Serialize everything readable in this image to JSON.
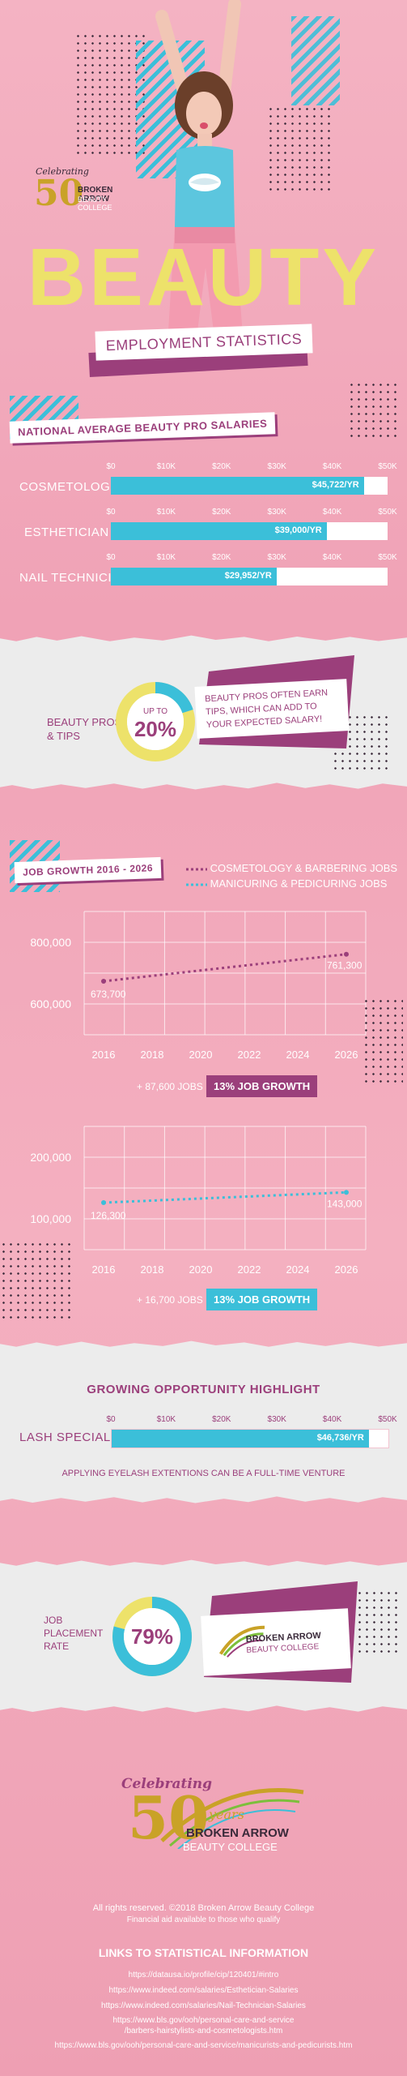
{
  "brand": {
    "celebrating": "Celebrating",
    "number": "50",
    "years": "years",
    "name_line1": "BROKEN ARROW",
    "name_line2": "BEAUTY COLLEGE"
  },
  "hero": {
    "title": "BEAUTY",
    "subtitle": "EMPLOYMENT STATISTICS"
  },
  "salaries": {
    "section_label": "NATIONAL AVERAGE BEAUTY PRO SALARIES",
    "ticks": [
      "$0",
      "$10K",
      "$20K",
      "$30K",
      "$40K",
      "$50K"
    ],
    "max": 50000,
    "rows": [
      {
        "label": "COSMETOLOGIST",
        "value": 45722,
        "value_label": "$45,722/YR"
      },
      {
        "label": "ESTHETICIAN",
        "value": 39000,
        "value_label": "$39,000/YR"
      },
      {
        "label": "NAIL TECHNICIAN",
        "value": 29952,
        "value_label": "$29,952/YR"
      }
    ]
  },
  "tips": {
    "label_line1": "BEAUTY PROS",
    "label_line2": "& TIPS",
    "up_to": "UP TO",
    "percent": "20%",
    "percent_value": 20,
    "note_line1": "BEAUTY PROS OFTEN EARN",
    "note_line2": "TIPS, WHICH CAN ADD TO",
    "note_line3": "YOUR EXPECTED SALARY!"
  },
  "growth": {
    "section_label": "JOB GROWTH 2016 - 2026",
    "legend": [
      {
        "name": "COSMETOLOGY & BARBERING JOBS",
        "color": "#9b3f7b"
      },
      {
        "name": "MANICURING & PEDICURING JOBS",
        "color": "#3bbfd9"
      }
    ],
    "x_ticks": [
      "2016",
      "2018",
      "2020",
      "2022",
      "2024",
      "2026"
    ],
    "chart1": {
      "y_ticks": [
        "800,000",
        "600,000"
      ],
      "ylim": [
        500000,
        900000
      ],
      "start": 673700,
      "end": 761300,
      "start_label": "673,700",
      "end_label": "761,300",
      "jobs_text": "+ 87,600 JOBS",
      "growth_text": "13% JOB GROWTH"
    },
    "chart2": {
      "y_ticks": [
        "200,000",
        "100,000"
      ],
      "ylim": [
        50000,
        250000
      ],
      "start": 126300,
      "end": 143000,
      "start_label": "126,300",
      "end_label": "143,000",
      "jobs_text": "+ 16,700 JOBS",
      "growth_text": "13% JOB GROWTH"
    }
  },
  "opportunity": {
    "heading": "GROWING OPPORTUNITY HIGHLIGHT",
    "ticks": [
      "$0",
      "$10K",
      "$20K",
      "$30K",
      "$40K",
      "$50K"
    ],
    "label": "LASH SPECIALIST",
    "value": 46736,
    "value_label": "$46,736/YR",
    "note": "APPLYING EYELASH EXTENTIONS CAN BE A FULL-TIME VENTURE"
  },
  "placement": {
    "label_line1": "JOB",
    "label_line2": "PLACEMENT",
    "label_line3": "RATE",
    "percent": "79%",
    "percent_value": 79
  },
  "footer": {
    "rights": "All rights reserved. ©2018 Broken Arrow Beauty College",
    "aid": "Financial aid available to those who qualify",
    "links_heading": "LINKS TO STATISTICAL INFORMATION",
    "links": [
      "https://datausa.io/profile/cip/120401/#intro",
      "https://www.indeed.com/salaries/Esthetician-Salaries",
      "https://www.indeed.com/salaries/Nail-Technician-Salaries",
      "https://www.bls.gov/ooh/personal-care-and-service",
      "/barbers-hairstylists-and-cosmetologists.htm",
      "https://www.bls.gov/ooh/personal-care-and-service/manicurists-and-pedicurists.htm"
    ]
  }
}
